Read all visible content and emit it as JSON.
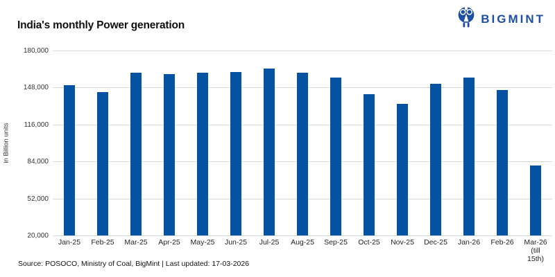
{
  "header": {
    "title": "India's monthly Power generation",
    "logo_text": "BIGMINT"
  },
  "chart_data": {
    "type": "bar",
    "title": "India's monthly Power generation",
    "xlabel": "",
    "ylabel": "in Billion units",
    "ylim": [
      20000,
      180000
    ],
    "ytick_interval": 32000,
    "yticks": [
      180000,
      148000,
      116000,
      84000,
      52000,
      20000
    ],
    "ytick_labels": [
      "180,000",
      "148,000",
      "116,000",
      "84,000",
      "52,000",
      "20,000"
    ],
    "categories": [
      "Jan-25",
      "Feb-25",
      "Mar-25",
      "Apr-25",
      "May-25",
      "Jun-25",
      "Jul-25",
      "Aug-25",
      "Sep-25",
      "Oct-25",
      "Nov-25",
      "Dec-25",
      "Jan-26",
      "Feb-26",
      "Mar-26\n(till\n15th)"
    ],
    "values": [
      150000,
      144000,
      161000,
      159500,
      161000,
      161500,
      164500,
      161000,
      156500,
      142500,
      134000,
      151000,
      156500,
      146000,
      80500
    ],
    "grid": true,
    "legend": false,
    "bar_color": "#0452a2",
    "gridline_color": "#d9d9d9"
  },
  "footer": {
    "source_text": "Source: POSOCO, Ministry of Coal, BigMint | Last updated: 17-03-2026"
  },
  "colors": {
    "logo_blue": "#1d4fa3",
    "bar_blue": "#0452a2",
    "gridline_gray": "#d9d9d9",
    "text_dark": "#111111"
  }
}
